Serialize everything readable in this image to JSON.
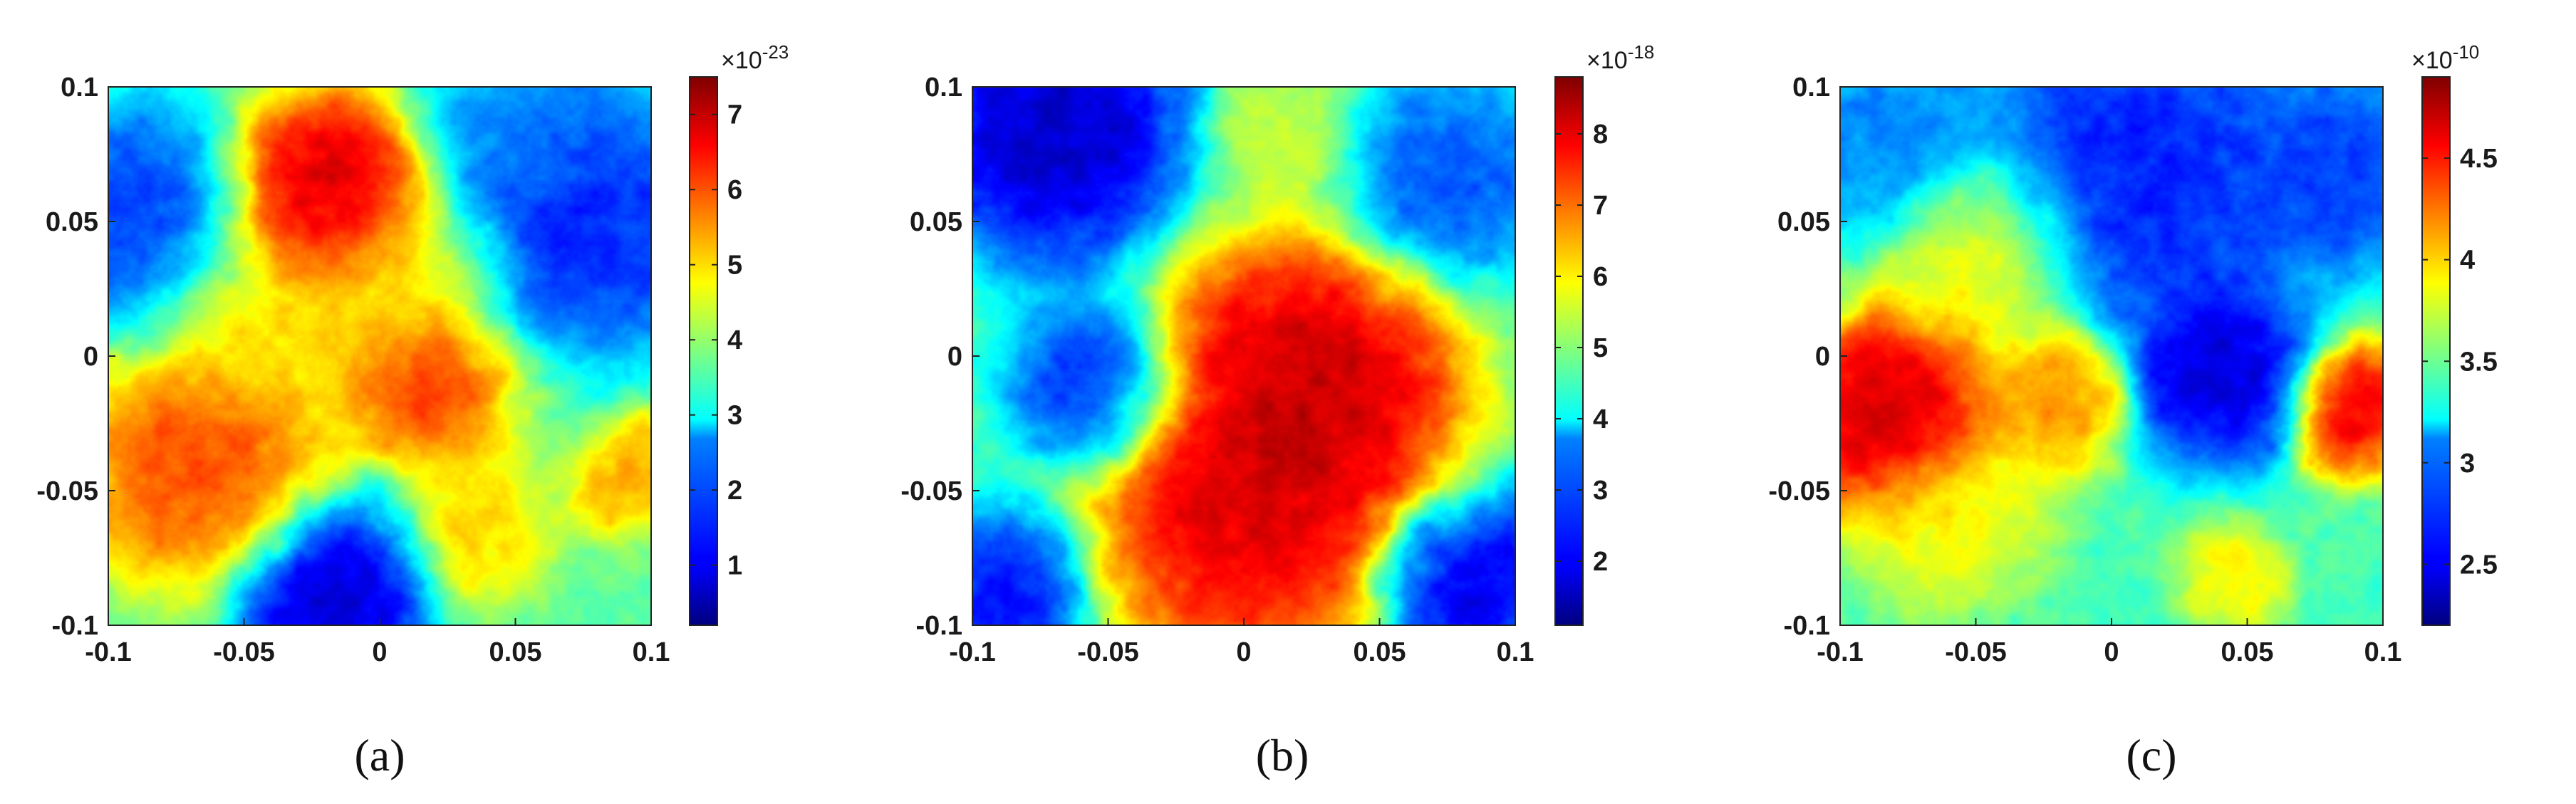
{
  "panel_labels": [
    "(a)",
    "(b)",
    "(c)"
  ],
  "chart_data": [
    {
      "type": "heatmap",
      "panel": "(a)",
      "title": "",
      "xlabel": "",
      "ylabel": "",
      "xlim": [
        -0.1,
        0.1
      ],
      "ylim": [
        -0.1,
        0.1
      ],
      "x_ticks": [
        "-0.1",
        "-0.05",
        "0",
        "0.05",
        "0.1"
      ],
      "y_ticks": [
        "0.1",
        "0.05",
        "0",
        "-0.05",
        "-0.1"
      ],
      "colormap": "jet",
      "colorbar": {
        "multiplier": "×10",
        "exponent": "-23",
        "range": [
          0.2,
          7.5
        ],
        "ticks": [
          "7",
          "6",
          "5",
          "4",
          "3",
          "2",
          "1"
        ],
        "tick_values": [
          7,
          6,
          5,
          4,
          3,
          2,
          1
        ]
      },
      "features": [
        {
          "x": -0.018,
          "y": 0.058,
          "value": 7.5,
          "spread": 0.02
        },
        {
          "x": 0.018,
          "y": -0.008,
          "value": 6.6,
          "spread": 0.016
        },
        {
          "x": -0.065,
          "y": -0.04,
          "value": 6.4,
          "spread": 0.024
        },
        {
          "x": -0.04,
          "y": 0.01,
          "value": 5.0,
          "spread": 0.022
        },
        {
          "x": 0.035,
          "y": -0.063,
          "value": 5.2,
          "spread": 0.014
        },
        {
          "x": 0.093,
          "y": -0.045,
          "value": 5.6,
          "spread": 0.011
        },
        {
          "x": 0.01,
          "y": 0.03,
          "value": 4.8,
          "spread": 0.018
        },
        {
          "x": -0.09,
          "y": 0.05,
          "value": 1.2,
          "spread": 0.022
        },
        {
          "x": 0.075,
          "y": 0.05,
          "value": 1.0,
          "spread": 0.025
        },
        {
          "x": -0.018,
          "y": -0.088,
          "value": 0.3,
          "spread": 0.018
        },
        {
          "x": 0.055,
          "y": 0.09,
          "value": 2.0,
          "spread": 0.02
        }
      ],
      "base_value": 3.6
    },
    {
      "type": "heatmap",
      "panel": "(b)",
      "title": "",
      "xlabel": "",
      "ylabel": "",
      "xlim": [
        -0.1,
        0.1
      ],
      "ylim": [
        -0.1,
        0.1
      ],
      "x_ticks": [
        "-0.1",
        "-0.05",
        "0",
        "0.05",
        "0.1"
      ],
      "y_ticks": [
        "0.1",
        "0.05",
        "0",
        "-0.05",
        "-0.1"
      ],
      "colormap": "jet",
      "colorbar": {
        "multiplier": "×10",
        "exponent": "-18",
        "range": [
          1.1,
          8.8
        ],
        "ticks": [
          "8",
          "7",
          "6",
          "5",
          "4",
          "3",
          "2"
        ],
        "tick_values": [
          8,
          7,
          6,
          5,
          4,
          3,
          2
        ]
      },
      "features": [
        {
          "x": 0.022,
          "y": -0.015,
          "value": 8.8,
          "spread": 0.03
        },
        {
          "x": 0.0,
          "y": -0.06,
          "value": 8.4,
          "spread": 0.028
        },
        {
          "x": -0.07,
          "y": 0.085,
          "value": 1.2,
          "spread": 0.025
        },
        {
          "x": -0.055,
          "y": -0.01,
          "value": 2.0,
          "spread": 0.016
        },
        {
          "x": 0.075,
          "y": 0.065,
          "value": 2.4,
          "spread": 0.02
        },
        {
          "x": 0.085,
          "y": -0.085,
          "value": 1.5,
          "spread": 0.018
        },
        {
          "x": -0.09,
          "y": -0.09,
          "value": 1.8,
          "spread": 0.016
        },
        {
          "x": 0.015,
          "y": 0.08,
          "value": 5.6,
          "spread": 0.014
        }
      ],
      "base_value": 4.6
    },
    {
      "type": "heatmap",
      "panel": "(c)",
      "title": "",
      "xlabel": "",
      "ylabel": "",
      "xlim": [
        -0.1,
        0.1
      ],
      "ylim": [
        -0.1,
        0.1
      ],
      "x_ticks": [
        "-0.1",
        "-0.05",
        "0",
        "0.05",
        "0.1"
      ],
      "y_ticks": [
        "0.1",
        "0.05",
        "0",
        "-0.05",
        "-0.1"
      ],
      "colormap": "jet",
      "colorbar": {
        "multiplier": "×10",
        "exponent": "-10",
        "range": [
          2.2,
          4.9
        ],
        "ticks": [
          "4.5",
          "4",
          "3.5",
          "3",
          "2.5"
        ],
        "tick_values": [
          4.5,
          4.0,
          3.5,
          3.0,
          2.5
        ]
      },
      "features": [
        {
          "x": -0.082,
          "y": -0.022,
          "value": 4.9,
          "spread": 0.02
        },
        {
          "x": 0.088,
          "y": -0.02,
          "value": 4.8,
          "spread": 0.012
        },
        {
          "x": -0.02,
          "y": -0.015,
          "value": 4.3,
          "spread": 0.014
        },
        {
          "x": -0.05,
          "y": 0.04,
          "value": 4.0,
          "spread": 0.018
        },
        {
          "x": 0.04,
          "y": -0.005,
          "value": 2.3,
          "spread": 0.018
        },
        {
          "x": 0.01,
          "y": 0.07,
          "value": 2.5,
          "spread": 0.03
        },
        {
          "x": 0.085,
          "y": 0.07,
          "value": 2.6,
          "spread": 0.02
        },
        {
          "x": -0.08,
          "y": 0.08,
          "value": 2.8,
          "spread": 0.02
        },
        {
          "x": 0.045,
          "y": -0.08,
          "value": 4.0,
          "spread": 0.01
        },
        {
          "x": -0.06,
          "y": -0.06,
          "value": 3.9,
          "spread": 0.018
        }
      ],
      "base_value": 3.4
    }
  ]
}
